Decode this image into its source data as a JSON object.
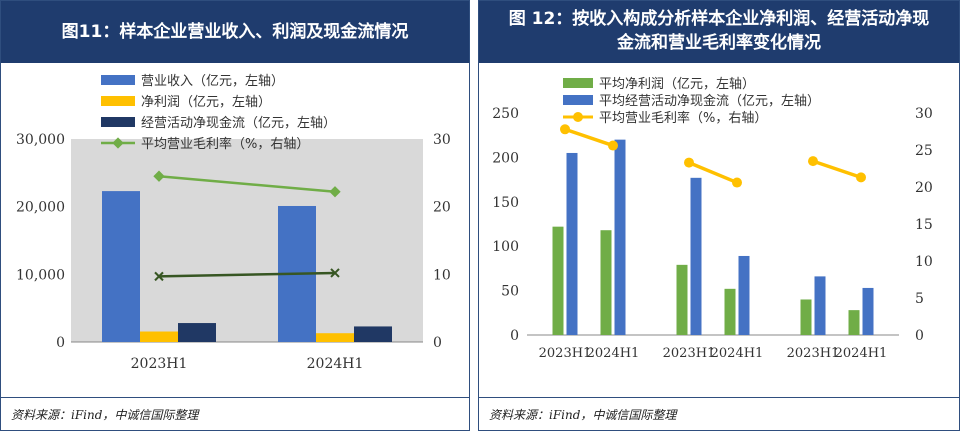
{
  "chart_data": [
    {
      "type": "bar",
      "title": "图11：样本企业营业收入、利润及现金流情况",
      "categories": [
        "2023H1",
        "2024H1"
      ],
      "y_left": {
        "ylim": [
          0,
          30000
        ],
        "ticks": [
          "0",
          "10,000",
          "20,000",
          "30,000"
        ],
        "tick_values": [
          0,
          10000,
          20000,
          30000
        ]
      },
      "y_right": {
        "ylim": [
          0,
          30
        ],
        "ticks": [
          "0",
          "10",
          "20",
          "30"
        ],
        "tick_values": [
          0,
          10,
          20,
          30
        ]
      },
      "series": [
        {
          "name": "营业收入（亿元，左轴）",
          "kind": "bar",
          "axis": "left",
          "color": "#4472c4",
          "values": [
            22300,
            20100
          ]
        },
        {
          "name": "净利润（亿元，左轴）",
          "kind": "bar",
          "axis": "left",
          "color": "#ffc000",
          "values": [
            1550,
            1300
          ]
        },
        {
          "name": "经营活动净现金流（亿元，左轴）",
          "kind": "bar",
          "axis": "left",
          "color": "#203864",
          "values": [
            2800,
            2300
          ]
        },
        {
          "name": "平均营业毛利率（%，右轴）",
          "kind": "line",
          "axis": "right",
          "color": "#70ad47",
          "values": [
            24.5,
            22.2
          ]
        },
        {
          "name": "",
          "kind": "line",
          "axis": "right",
          "color": "#375623",
          "marker": "x",
          "values": [
            9.7,
            10.2
          ]
        }
      ],
      "legend_position": "top-left",
      "source": "资料来源：iFind，中诚信国际整理"
    },
    {
      "type": "bar",
      "title_line1": "图 12：按收入构成分析样本企业净利润、经营活动净现",
      "title_line2": "金流和营业毛利率变化情况",
      "categories": [
        "2023H1",
        "2024H1",
        "2023H1",
        "2024H1",
        "2023H1",
        "2024H1"
      ],
      "y_left": {
        "ylim": [
          0,
          250
        ],
        "ticks": [
          "0",
          "50",
          "100",
          "150",
          "200",
          "250"
        ],
        "tick_values": [
          0,
          50,
          100,
          150,
          200,
          250
        ]
      },
      "y_right": {
        "ylim": [
          0,
          30
        ],
        "ticks": [
          "0",
          "5",
          "10",
          "15",
          "20",
          "25",
          "30"
        ],
        "tick_values": [
          0,
          5,
          10,
          15,
          20,
          25,
          30
        ]
      },
      "series": [
        {
          "name": "平均净利润（亿元，左轴）",
          "kind": "bar",
          "axis": "left",
          "color": "#70ad47",
          "values": [
            122,
            118,
            79,
            52,
            40,
            28
          ]
        },
        {
          "name": "平均经营活动净现金流（亿元，左轴）",
          "kind": "bar",
          "axis": "left",
          "color": "#4472c4",
          "values": [
            205,
            220,
            177,
            89,
            66,
            53
          ]
        },
        {
          "name": "平均营业毛利率（%，右轴）",
          "kind": "line",
          "axis": "right",
          "color": "#ffc000",
          "segments": [
            [
              0,
              1
            ],
            [
              2,
              3
            ],
            [
              4,
              5
            ]
          ],
          "values": [
            27.8,
            25.6,
            23.3,
            20.6,
            23.5,
            21.3
          ]
        }
      ],
      "legend_position": "top",
      "source": "资料来源：iFind，中诚信国际整理"
    }
  ]
}
